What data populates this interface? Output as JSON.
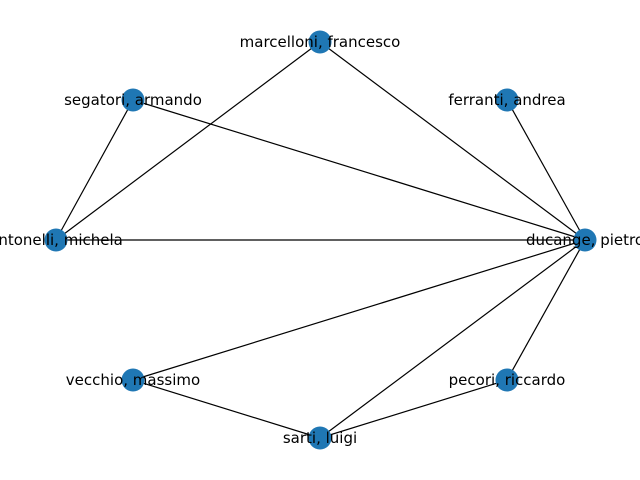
{
  "graph": {
    "node_color": "#1f77b4",
    "edge_color": "#000000",
    "nodes": [
      {
        "id": "marcelloni",
        "label": "marcelloni, francesco"
      },
      {
        "id": "segatori",
        "label": "segatori, armando"
      },
      {
        "id": "ferranti",
        "label": "ferranti, andrea"
      },
      {
        "id": "antonelli",
        "label": "antonelli, michela"
      },
      {
        "id": "ducange",
        "label": "ducange, pietro"
      },
      {
        "id": "vecchio",
        "label": "vecchio, massimo"
      },
      {
        "id": "pecori",
        "label": "pecori, riccardo"
      },
      {
        "id": "sarti",
        "label": "sarti, luigi"
      }
    ],
    "edges": [
      [
        "marcelloni",
        "ducange"
      ],
      [
        "marcelloni",
        "antonelli"
      ],
      [
        "segatori",
        "antonelli"
      ],
      [
        "segatori",
        "ducange"
      ],
      [
        "ferranti",
        "ducange"
      ],
      [
        "antonelli",
        "ducange"
      ],
      [
        "vecchio",
        "ducange"
      ],
      [
        "vecchio",
        "sarti"
      ],
      [
        "sarti",
        "ducange"
      ],
      [
        "sarti",
        "pecori"
      ],
      [
        "pecori",
        "ducange"
      ]
    ]
  }
}
